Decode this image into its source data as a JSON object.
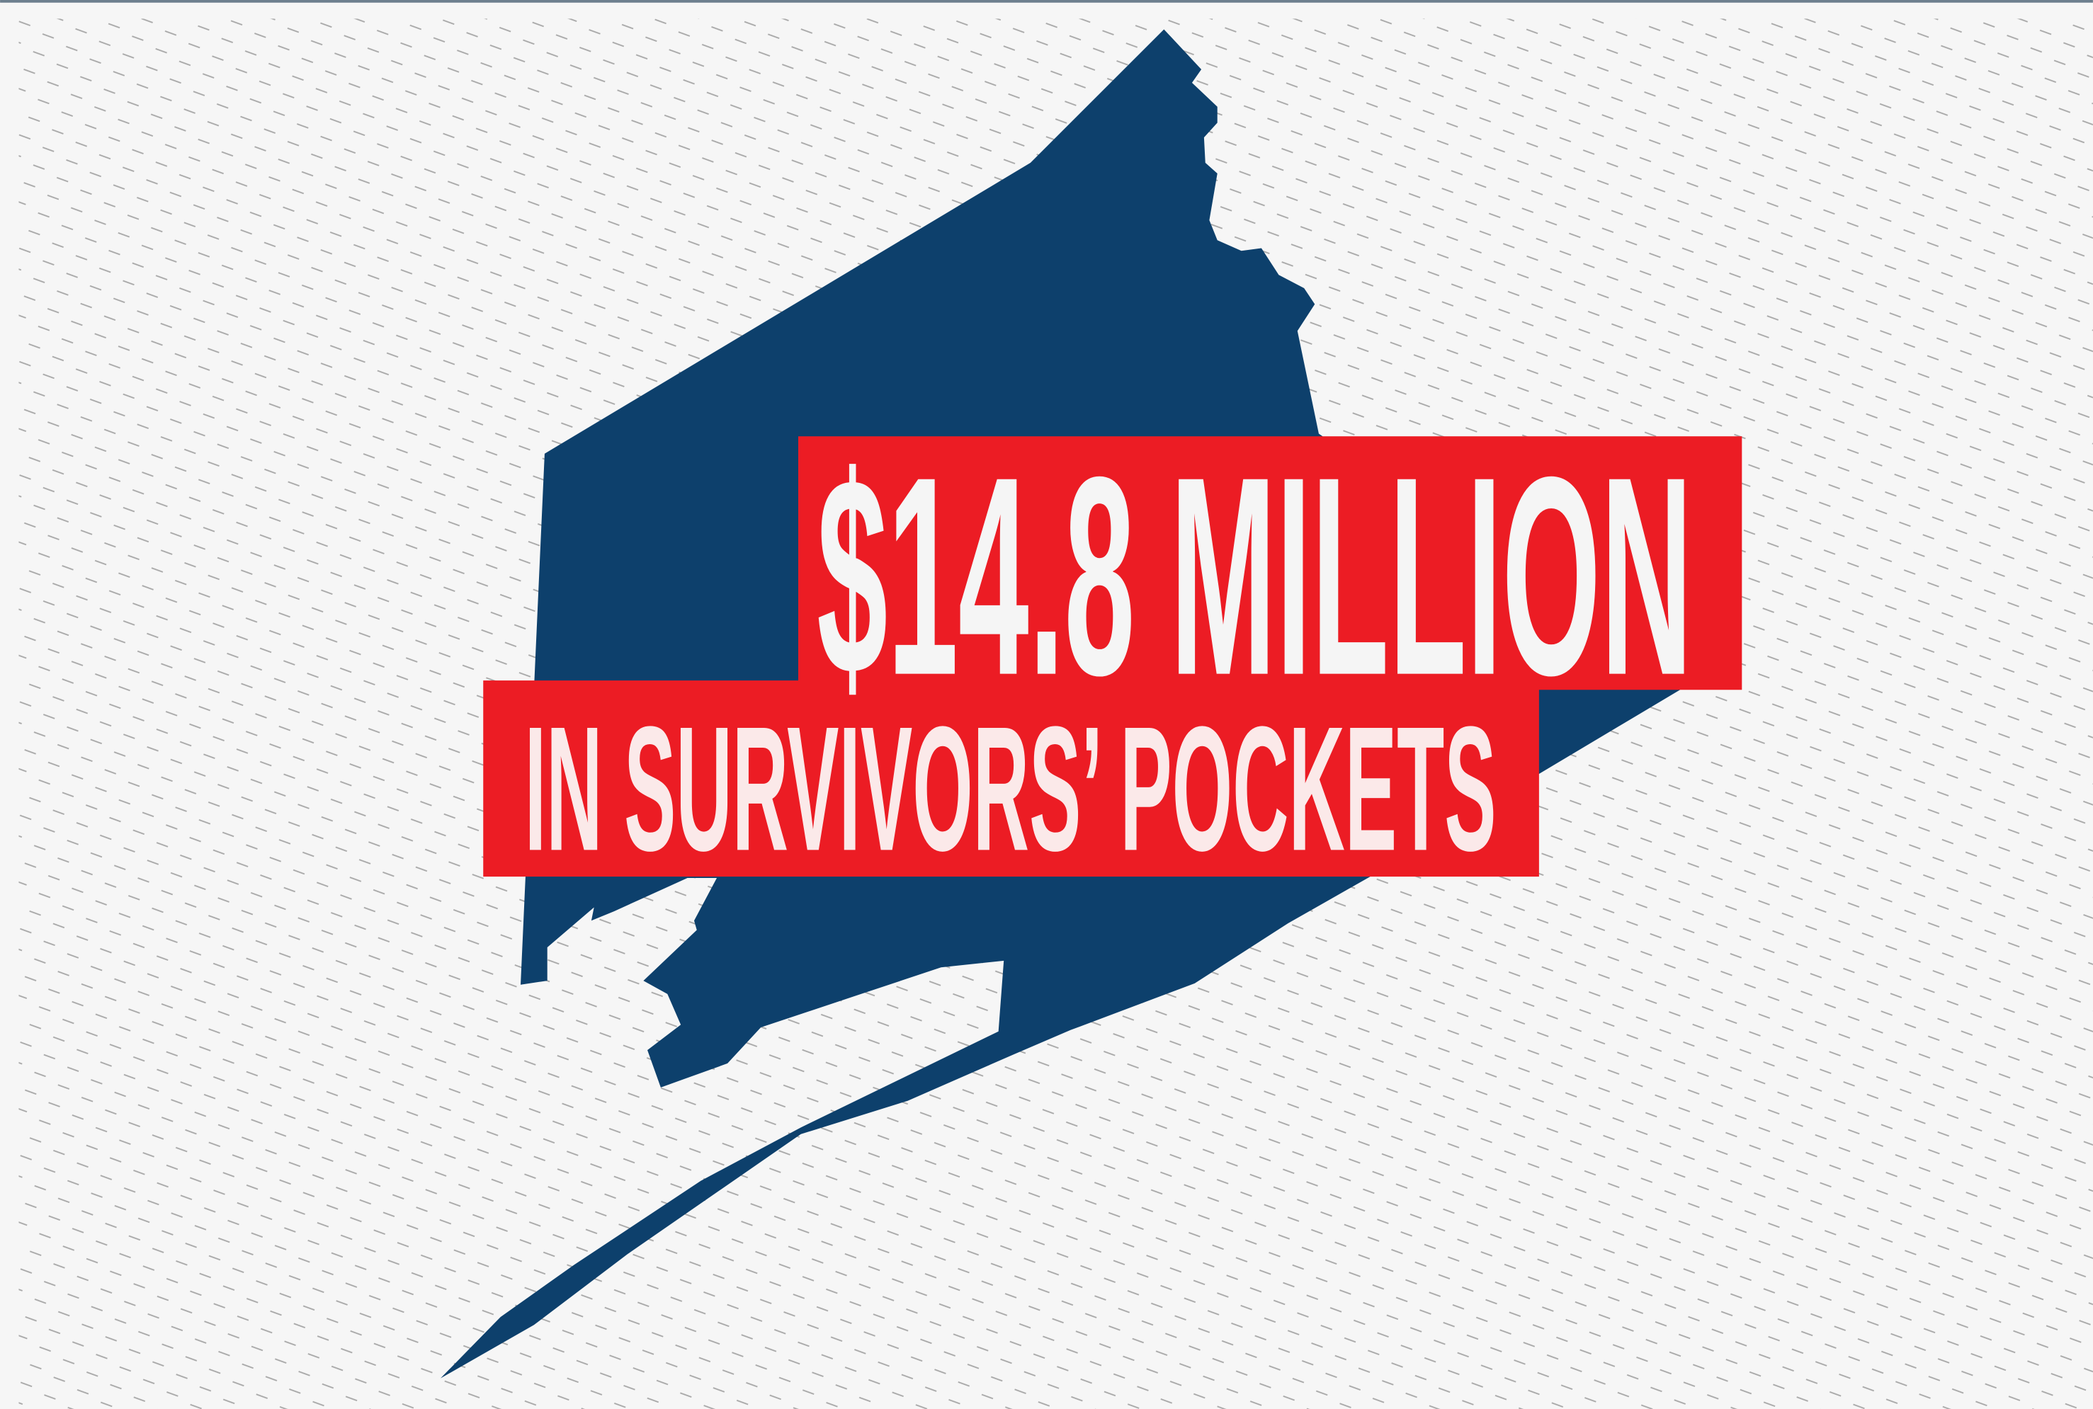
{
  "headline": {
    "amount": "$14.8 MILLION",
    "caption": "IN SURVIVORS’ POCKETS"
  }
}
